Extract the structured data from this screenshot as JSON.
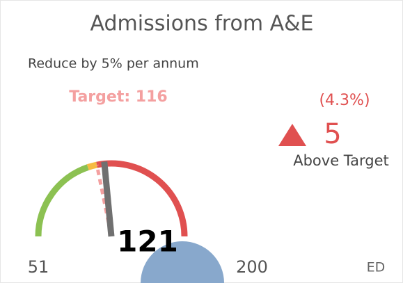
{
  "chart_data": {
    "type": "gauge",
    "title": "Admissions from A&E",
    "subtitle": "Reduce by 5% per annum",
    "value": 121,
    "range": [
      51,
      200
    ],
    "target": {
      "value": 116,
      "label": "Target: 116"
    },
    "variance": 5,
    "variance_percent": {
      "value": 4.3,
      "label": "(4.3%)"
    },
    "status": "Above Target",
    "footer": "ED",
    "bands": [
      {
        "from": 51,
        "to": 110,
        "color": "#8cc152"
      },
      {
        "from": 110,
        "to": 116,
        "color": "#f6bb42"
      },
      {
        "from": 116,
        "to": 200,
        "color": "#e05050"
      }
    ],
    "needle_color": "#707070",
    "target_color": "#f4a0a0",
    "status_color": "#e05050"
  }
}
